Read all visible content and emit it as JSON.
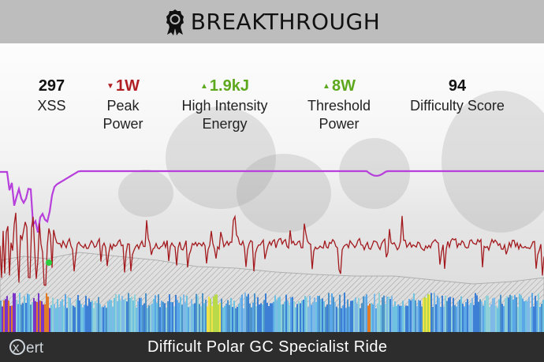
{
  "header": {
    "title": "BREAKTHROUGH",
    "badge_icon": "award-badge-icon"
  },
  "stats": [
    {
      "value": "297",
      "label": "XSS",
      "trend": "none",
      "color": "#111111"
    },
    {
      "value": "1W",
      "label": "Peak Power",
      "trend": "down",
      "color": "#b01f24"
    },
    {
      "value": "1.9kJ",
      "label": "High Intensity Energy",
      "trend": "up",
      "color": "#5ea81e"
    },
    {
      "value": "8W",
      "label": "Threshold Power",
      "trend": "up",
      "color": "#5ea81e"
    },
    {
      "value": "94",
      "label": "Difficulty Score",
      "trend": "none",
      "color": "#111111"
    }
  ],
  "footer": {
    "logo_text": "xert",
    "ride_title": "Difficult Polar GC Specialist Ride"
  },
  "colors": {
    "power_line": "#a3191d",
    "upper_line": "#b73fdc",
    "header_bg": "#bdbdbd",
    "footer_bg": "#2d2d2d"
  }
}
